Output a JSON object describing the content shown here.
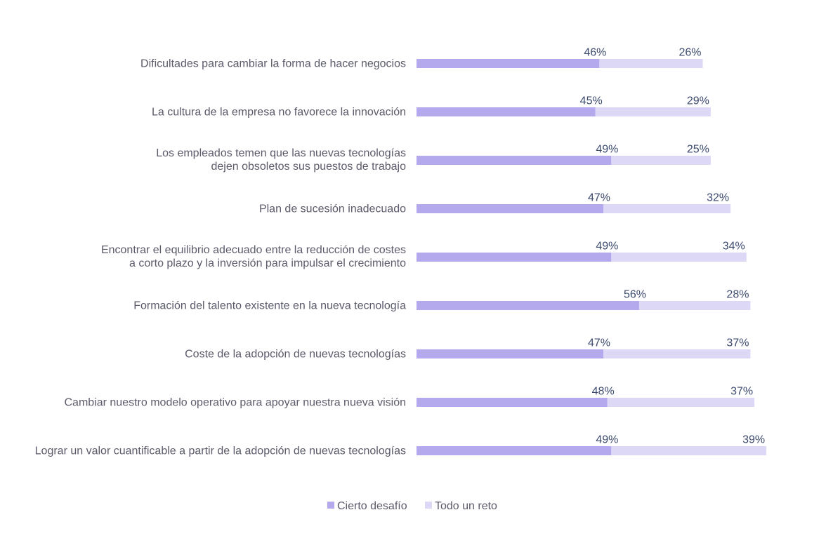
{
  "chart_data": {
    "type": "bar",
    "orientation": "horizontal",
    "stacked": true,
    "title": "",
    "xlabel": "",
    "ylabel": "",
    "xlim": [
      0,
      100
    ],
    "grid": false,
    "legend_position": "bottom",
    "categories": [
      [
        "Dificultades para cambiar la forma de hacer negocios"
      ],
      [
        "La cultura de la empresa no favorece la innovación"
      ],
      [
        "Los empleados temen que las nuevas tecnologías",
        "dejen obsoletos sus puestos de trabajo"
      ],
      [
        "Plan de sucesión inadecuado"
      ],
      [
        "Encontrar el equilibrio adecuado entre la reducción de costes",
        "a corto plazo y la inversión para impulsar el crecimiento"
      ],
      [
        "Formación del talento existente en la nueva tecnología"
      ],
      [
        "Coste de la adopción de nuevas tecnologías"
      ],
      [
        "Cambiar nuestro modelo operativo para apoyar nuestra nueva visión"
      ],
      [
        "Lograr un valor cuantificable a partir de la adopción de nuevas tecnologías"
      ]
    ],
    "series": [
      {
        "name": "Cierto desafío",
        "color": "#b3a9ec",
        "values": [
          46,
          45,
          49,
          47,
          49,
          56,
          47,
          48,
          49
        ],
        "labels": [
          "46%",
          "45%",
          "49%",
          "47%",
          "49%",
          "56%",
          "47%",
          "48%",
          "49%"
        ]
      },
      {
        "name": "Todo un reto",
        "color": "#dcd8f6",
        "values": [
          26,
          29,
          25,
          32,
          34,
          28,
          37,
          37,
          39
        ],
        "labels": [
          "26%",
          "29%",
          "25%",
          "32%",
          "34%",
          "28%",
          "37%",
          "37%",
          "39%"
        ]
      }
    ]
  }
}
